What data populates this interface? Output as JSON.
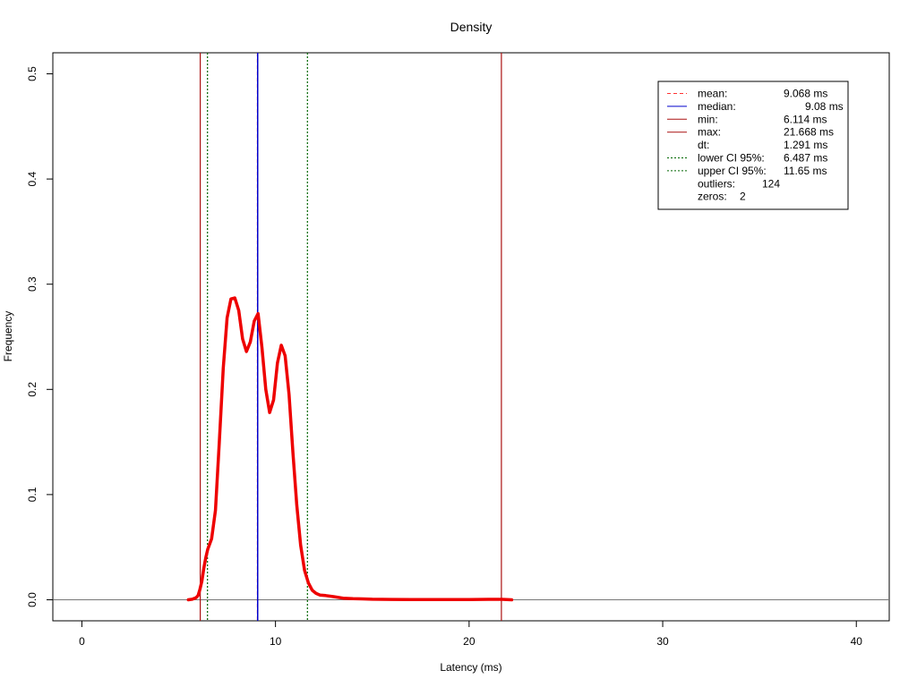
{
  "chart_data": {
    "type": "line",
    "title": "Density",
    "xlabel": "Latency (ms)",
    "ylabel": "Frequency",
    "xlim": [
      -1.5,
      41.7
    ],
    "ylim": [
      -0.02,
      0.52
    ],
    "x_ticks": [
      0,
      10,
      20,
      30,
      40
    ],
    "y_ticks": [
      0.0,
      0.1,
      0.2,
      0.3,
      0.4,
      0.5
    ],
    "x_tick_labels": [
      "0",
      "10",
      "20",
      "30",
      "40"
    ],
    "y_tick_labels": [
      "0.0",
      "0.1",
      "0.2",
      "0.3",
      "0.4",
      "0.5"
    ],
    "grid": false,
    "legend_position": "top-right",
    "baseline": 0,
    "series": [
      {
        "color": "#ee0000",
        "x": [
          5.5,
          5.7,
          5.9,
          6.0,
          6.1,
          6.2,
          6.3,
          6.4,
          6.5,
          6.7,
          6.9,
          7.1,
          7.3,
          7.5,
          7.7,
          7.9,
          8.1,
          8.3,
          8.5,
          8.7,
          8.9,
          9.1,
          9.3,
          9.5,
          9.7,
          9.9,
          10.1,
          10.3,
          10.5,
          10.7,
          10.9,
          11.1,
          11.3,
          11.5,
          11.7,
          11.9,
          12.1,
          12.3,
          12.6,
          13.0,
          13.5,
          14.0,
          14.5,
          15.0,
          16.0,
          17.0,
          18.0,
          19.0,
          20.0,
          21.0,
          21.7,
          22.2
        ],
        "y": [
          0.0,
          0.0005,
          0.002,
          0.004,
          0.01,
          0.018,
          0.03,
          0.04,
          0.048,
          0.058,
          0.085,
          0.15,
          0.22,
          0.268,
          0.286,
          0.287,
          0.275,
          0.248,
          0.236,
          0.245,
          0.265,
          0.272,
          0.24,
          0.2,
          0.178,
          0.19,
          0.225,
          0.242,
          0.232,
          0.195,
          0.14,
          0.09,
          0.052,
          0.028,
          0.016,
          0.009,
          0.006,
          0.0045,
          0.004,
          0.003,
          0.0015,
          0.001,
          0.0008,
          0.0005,
          0.0003,
          0.0002,
          0.0002,
          0.0002,
          0.0002,
          0.0004,
          0.0004,
          0.0
        ]
      }
    ],
    "vlines": [
      {
        "key": "mean",
        "x": 9.068,
        "color": "#ff3333",
        "style": "dashed"
      },
      {
        "key": "median",
        "x": 9.08,
        "color": "#0000cc",
        "style": "solid"
      },
      {
        "key": "min",
        "x": 6.114,
        "color": "#aa1111",
        "style": "solid"
      },
      {
        "key": "max",
        "x": 21.668,
        "color": "#aa1111",
        "style": "solid"
      },
      {
        "key": "lower_ci",
        "x": 6.487,
        "color": "#006600",
        "style": "dotted"
      },
      {
        "key": "upper_ci",
        "x": 11.65,
        "color": "#006600",
        "style": "dotted"
      }
    ],
    "legend": [
      {
        "label": "mean:",
        "value": "9.068 ms",
        "color": "#ff3333",
        "style": "dashed"
      },
      {
        "label": "median:",
        "value": "9.08 ms",
        "color": "#0000cc",
        "style": "solid"
      },
      {
        "label": "min:",
        "value": "6.114 ms",
        "color": "#aa1111",
        "style": "solid"
      },
      {
        "label": "max:",
        "value": "21.668 ms",
        "color": "#aa1111",
        "style": "solid"
      },
      {
        "label": "dt:",
        "value": "1.291 ms",
        "color": null,
        "style": "none"
      },
      {
        "label": "lower CI 95%:",
        "value": "6.487 ms",
        "color": "#006600",
        "style": "dotted"
      },
      {
        "label": "upper CI 95%:",
        "value": "11.65 ms",
        "color": "#006600",
        "style": "dotted"
      },
      {
        "label": "outliers:",
        "value": "124",
        "color": null,
        "style": "none"
      },
      {
        "label": "zeros:",
        "value": "2",
        "color": null,
        "style": "none"
      }
    ]
  }
}
